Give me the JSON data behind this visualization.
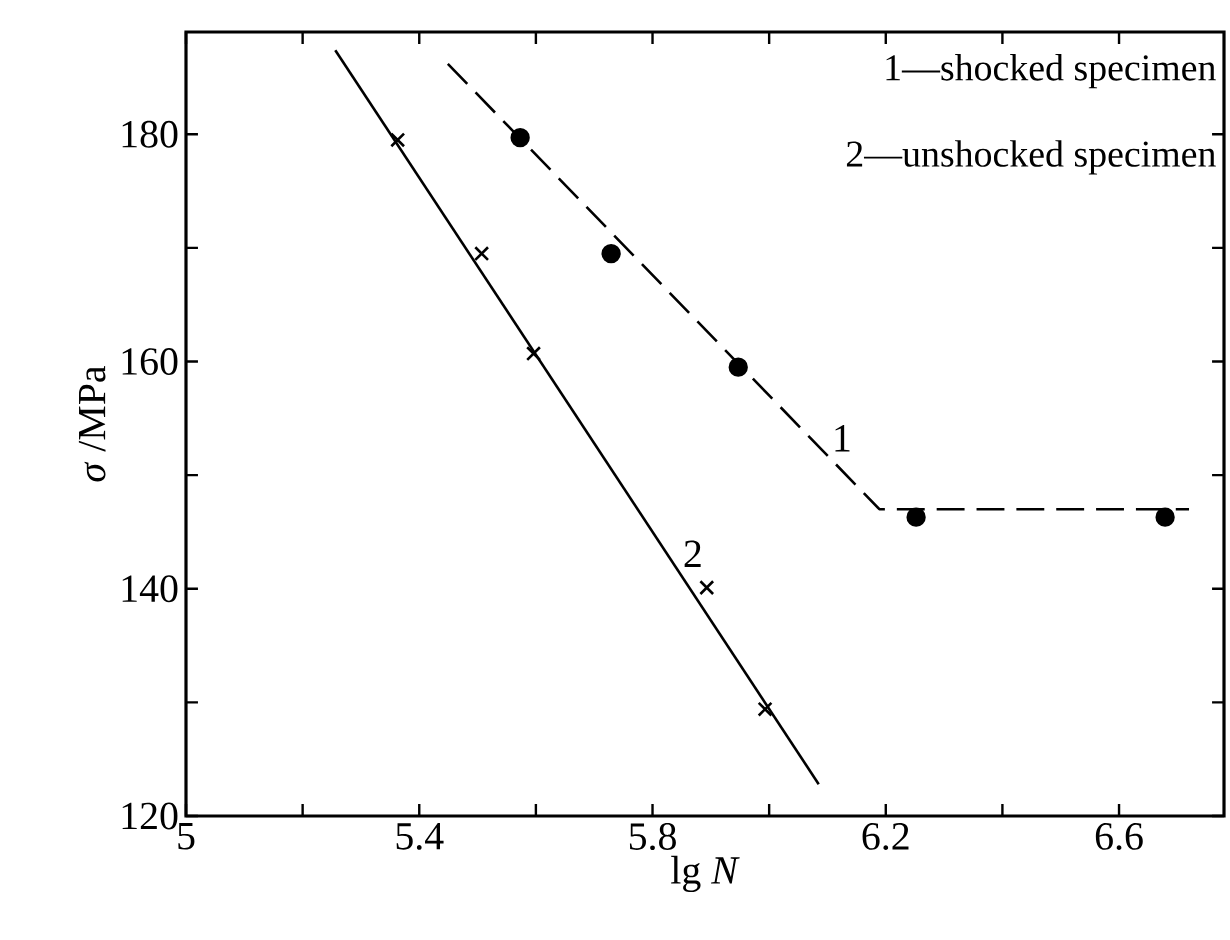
{
  "chart_data": {
    "type": "scatter",
    "xlabel": "lg *N*",
    "ylabel": "*σ* /MPa",
    "xlim": [
      5,
      6.78
    ],
    "ylim": [
      120,
      189
    ],
    "xticks": [
      5,
      {
        "value": 5.2,
        "label": null
      },
      5.4,
      {
        "value": 5.6,
        "label": null
      },
      5.8,
      {
        "value": 6.0,
        "label": null
      },
      6.2,
      {
        "value": 6.4,
        "label": null
      },
      6.6
    ],
    "yticks": [
      120,
      {
        "value": 130,
        "label": null
      },
      140,
      {
        "value": 150,
        "label": null
      },
      160,
      {
        "value": 170,
        "label": null
      },
      180
    ],
    "grid": false,
    "series": [
      {
        "color": "#000000",
        "marker": "circle",
        "x": [
          5.573,
          5.729,
          5.947,
          6.252,
          6.679
        ],
        "values": [
          179.7,
          169.5,
          159.5,
          146.3,
          146.3
        ]
      },
      {
        "type": "line",
        "name": "1",
        "color": "#000000",
        "line_style": "dashed",
        "x": [
          5.449,
          6.189,
          6.72
        ],
        "values": [
          186.2,
          147.0,
          147.0
        ]
      },
      {
        "color": "#000000",
        "marker": "cross",
        "x": [
          5.363,
          5.507,
          5.596,
          5.893,
          5.993
        ],
        "values": [
          179.5,
          169.5,
          160.7,
          140.1,
          129.4
        ]
      },
      {
        "type": "line",
        "name": "2",
        "color": "#000000",
        "line_style": "solid",
        "x": [
          5.256,
          6.085
        ],
        "values": [
          187.4,
          122.8
        ]
      }
    ],
    "annotations": [
      "1—shocked specimen",
      "2—unshocked specimen"
    ]
  }
}
